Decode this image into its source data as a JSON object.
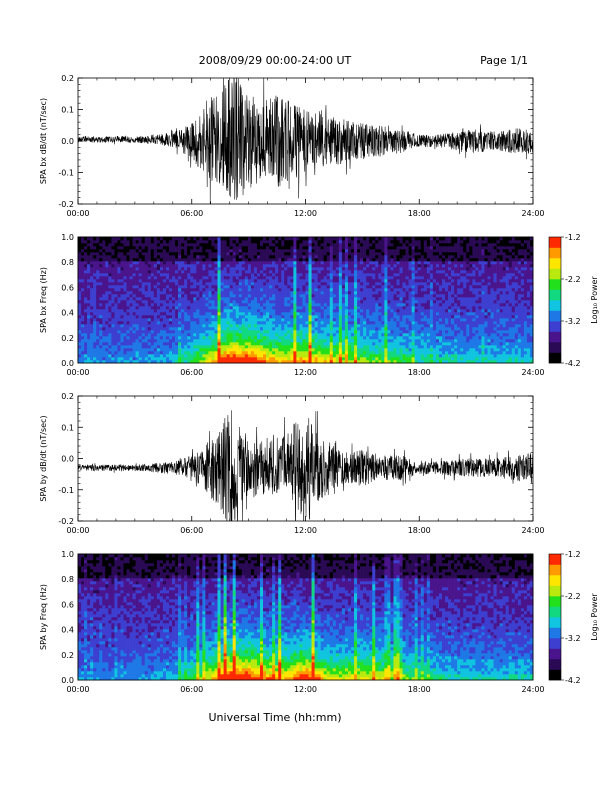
{
  "header": {
    "title": "2008/09/29  00:00-24:00 UT",
    "page": "Page 1/1"
  },
  "x_axis_title": "Universal Time (hh:mm)",
  "colors": {
    "trace": "#000000",
    "spectrogram_colormap": [
      "#000000",
      "#2a0a55",
      "#4a148c",
      "#3d3fd0",
      "#1e78e6",
      "#11c4e0",
      "#12d880",
      "#22e01c",
      "#b8ea10",
      "#ffe600",
      "#ff9a00",
      "#ff2a00"
    ]
  },
  "chart_data": [
    {
      "type": "line",
      "ylabel": "SPA bx dB/dt (nT/sec)",
      "xlim": [
        0,
        24
      ],
      "ylim": [
        -0.2,
        0.2
      ],
      "x_ticks": [
        "00:00",
        "06:00",
        "12:00",
        "18:00",
        "24:00"
      ],
      "y_ticks": [
        "0.2",
        "0.1",
        "0.0",
        "-0.1",
        "-0.2"
      ],
      "series": [
        {
          "x": [
            0,
            1,
            2,
            3,
            4,
            5,
            5.5,
            6,
            6.5,
            7,
            7.5,
            8,
            8.5,
            9,
            9.5,
            10,
            10.5,
            11,
            11.5,
            12,
            12.5,
            13,
            13.5,
            14,
            14.5,
            15,
            15.5,
            16,
            16.5,
            17,
            18,
            19,
            20,
            21,
            22,
            23,
            24
          ],
          "baseline": [
            0.005,
            0.005,
            0.005,
            0.005,
            0.005,
            0.003,
            0.0,
            0.0,
            0.0,
            0.0,
            0.0,
            0.0,
            0.0,
            0.0,
            0.0,
            0.0,
            0.0,
            0.0,
            0.0,
            0.0,
            0.0,
            0.0,
            0.0,
            0.0,
            0.0,
            0.0,
            0.0,
            0.0,
            0.0,
            0.0,
            0.0,
            0.0,
            0.0,
            0.0,
            0.0,
            0.0,
            0.0
          ],
          "amplitude": [
            0.01,
            0.01,
            0.01,
            0.01,
            0.015,
            0.025,
            0.04,
            0.06,
            0.1,
            0.15,
            0.16,
            0.2,
            0.19,
            0.15,
            0.14,
            0.13,
            0.15,
            0.13,
            0.12,
            0.11,
            0.09,
            0.1,
            0.08,
            0.07,
            0.06,
            0.06,
            0.05,
            0.05,
            0.04,
            0.04,
            0.02,
            0.02,
            0.03,
            0.04,
            0.03,
            0.04,
            0.04
          ]
        }
      ]
    },
    {
      "type": "heatmap",
      "ylabel": "SPA bx Freq (Hz)",
      "xlim": [
        0,
        24
      ],
      "ylim": [
        0.0,
        1.0
      ],
      "x_ticks": [
        "00:00",
        "06:00",
        "12:00",
        "18:00",
        "24:00"
      ],
      "y_ticks": [
        "1.0",
        "0.8",
        "0.6",
        "0.4",
        "0.2",
        "0.0"
      ],
      "colorbar": {
        "label": "Log₁₀ Power",
        "range": [
          -4.2,
          -1.2
        ],
        "ticks": [
          "-1.2",
          "-2.2",
          "-3.2",
          "-4.2"
        ]
      },
      "intensity_profile": {
        "x": [
          0,
          3,
          5,
          6,
          7,
          8,
          9,
          10,
          11,
          12,
          13,
          14,
          15,
          16,
          18,
          20,
          22,
          24
        ],
        "activity": [
          0.1,
          0.1,
          0.15,
          0.3,
          0.5,
          0.8,
          0.75,
          0.6,
          0.55,
          0.6,
          0.5,
          0.45,
          0.4,
          0.35,
          0.25,
          0.2,
          0.2,
          0.2
        ]
      }
    },
    {
      "type": "line",
      "ylabel": "SPA by dB/dt (nT/sec)",
      "xlim": [
        0,
        24
      ],
      "ylim": [
        -0.2,
        0.2
      ],
      "x_ticks": [
        "00:00",
        "06:00",
        "12:00",
        "18:00",
        "24:00"
      ],
      "y_ticks": [
        "0.2",
        "0.1",
        "0.0",
        "-0.1",
        "-0.2"
      ],
      "series": [
        {
          "x": [
            0,
            1,
            2,
            3,
            4,
            5,
            5.5,
            6,
            6.5,
            7,
            7.5,
            8,
            8.5,
            9,
            9.5,
            10,
            10.5,
            11,
            11.5,
            12,
            12.5,
            13,
            13.5,
            14,
            14.5,
            15,
            15.5,
            16,
            16.5,
            17,
            18,
            19,
            20,
            21,
            22,
            23,
            24
          ],
          "baseline": [
            -0.03,
            -0.03,
            -0.03,
            -0.03,
            -0.03,
            -0.03,
            -0.03,
            -0.03,
            -0.03,
            -0.03,
            -0.03,
            -0.03,
            -0.03,
            -0.03,
            -0.03,
            -0.03,
            -0.03,
            -0.03,
            -0.03,
            -0.03,
            -0.03,
            -0.03,
            -0.03,
            -0.03,
            -0.03,
            -0.03,
            -0.03,
            -0.03,
            -0.03,
            -0.03,
            -0.03,
            -0.03,
            -0.03,
            -0.03,
            -0.03,
            -0.03,
            -0.03
          ],
          "amplitude": [
            0.01,
            0.01,
            0.01,
            0.01,
            0.015,
            0.02,
            0.03,
            0.04,
            0.06,
            0.1,
            0.13,
            0.2,
            0.14,
            0.1,
            0.09,
            0.08,
            0.1,
            0.11,
            0.16,
            0.2,
            0.12,
            0.1,
            0.07,
            0.05,
            0.05,
            0.06,
            0.05,
            0.04,
            0.04,
            0.04,
            0.02,
            0.02,
            0.03,
            0.03,
            0.03,
            0.04,
            0.05
          ]
        }
      ]
    },
    {
      "type": "heatmap",
      "ylabel": "SPA by Freq (Hz)",
      "xlim": [
        0,
        24
      ],
      "ylim": [
        0.0,
        1.0
      ],
      "x_ticks": [
        "00:00",
        "06:00",
        "12:00",
        "18:00",
        "24:00"
      ],
      "y_ticks": [
        "1.0",
        "0.8",
        "0.6",
        "0.4",
        "0.2",
        "0.0"
      ],
      "colorbar": {
        "label": "Log₁₀ Power",
        "range": [
          -4.2,
          -1.2
        ],
        "ticks": [
          "-1.2",
          "-2.2",
          "-3.2",
          "-4.2"
        ]
      },
      "intensity_profile": {
        "x": [
          0,
          3,
          5,
          6,
          7,
          8,
          9,
          10,
          11,
          12,
          13,
          14,
          15,
          16,
          18,
          20,
          22,
          24
        ],
        "activity": [
          0.1,
          0.1,
          0.15,
          0.3,
          0.5,
          0.8,
          0.75,
          0.6,
          0.55,
          0.75,
          0.5,
          0.45,
          0.5,
          0.45,
          0.3,
          0.2,
          0.2,
          0.2
        ]
      }
    }
  ]
}
